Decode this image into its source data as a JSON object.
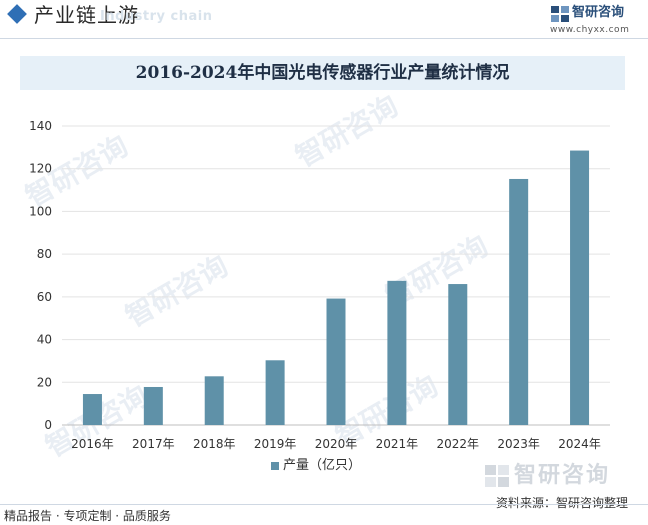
{
  "header": {
    "title": "产业链上游",
    "subtitle": "Industry chain",
    "brand_name": "智研咨询",
    "brand_url": "www.chyxx.com"
  },
  "watermark_text": "智研咨询",
  "chart_data": {
    "type": "bar",
    "title": "2016-2024年中国光电传感器行业产量统计情况",
    "categories": [
      "2016年",
      "2017年",
      "2018年",
      "2019年",
      "2020年",
      "2021年",
      "2022年",
      "2023年",
      "2024年"
    ],
    "series": [
      {
        "name": "产量（亿只）",
        "values": [
          14.5,
          17.8,
          22.8,
          30.3,
          59.2,
          67.5,
          66.0,
          115.2,
          128.5
        ]
      }
    ],
    "ylim": [
      0,
      140
    ],
    "yticks": [
      0,
      20,
      40,
      60,
      80,
      100,
      120,
      140
    ],
    "xlabel": "",
    "ylabel": "",
    "grid": true,
    "legend_position": "bottom-center",
    "color": "#5f91a8"
  },
  "footer": {
    "source": "资料来源：智研咨询整理",
    "tagline": "精品报告 · 专项定制 · 品质服务",
    "brand_name": "智研咨询"
  }
}
